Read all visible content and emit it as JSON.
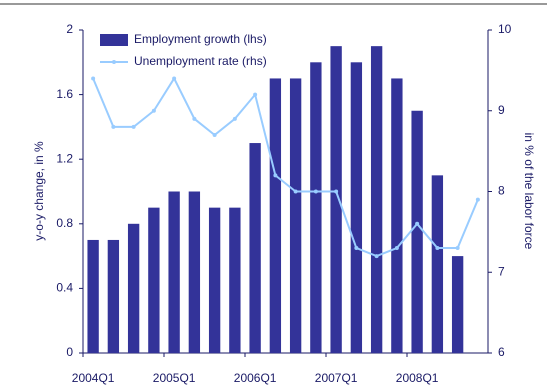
{
  "chart_data": {
    "type": "bar-line",
    "categories": [
      "2004Q1",
      null,
      null,
      null,
      "2005Q1",
      null,
      null,
      null,
      "2006Q1",
      null,
      null,
      null,
      "2007Q1",
      null,
      null,
      null,
      "2008Q1",
      null,
      null,
      null
    ],
    "series": [
      {
        "name": "Employment growth (lhs)",
        "type": "bar",
        "color": "#333399",
        "values": [
          0.7,
          0.7,
          0.8,
          0.9,
          1.0,
          1.0,
          0.9,
          0.9,
          1.3,
          1.7,
          1.7,
          1.8,
          1.9,
          1.8,
          1.9,
          1.7,
          1.5,
          1.1,
          0.6,
          null
        ]
      },
      {
        "name": "Unemployment rate (rhs)",
        "type": "line",
        "axis": "y2",
        "color": "#99ccff",
        "values": [
          9.4,
          8.8,
          8.8,
          9.0,
          9.4,
          8.9,
          8.7,
          8.9,
          9.2,
          8.2,
          8.0,
          8.0,
          8.0,
          7.3,
          7.2,
          7.3,
          7.6,
          7.3,
          7.3,
          7.9
        ]
      }
    ],
    "ylabel": "y-o-y change, in %",
    "y2label": "in % of the labor force",
    "ylim": [
      0,
      2
    ],
    "yticks": [
      0,
      0.4,
      0.8,
      1.2,
      1.6,
      2
    ],
    "y2lim": [
      6,
      10
    ],
    "y2ticks": [
      6,
      7,
      8,
      9,
      10
    ],
    "legend": "upper left"
  }
}
